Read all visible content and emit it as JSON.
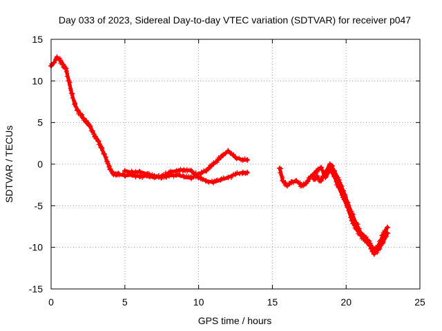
{
  "chart_data": {
    "type": "scatter",
    "title": "Day 033 of 2023, Sidereal Day-to-day VTEC variation (SDTVAR) for receiver p047",
    "xlabel": "GPS time / hours",
    "ylabel": "SDTVAR / TECUs",
    "xlim": [
      0,
      25
    ],
    "ylim": [
      -15,
      15
    ],
    "xticks": [
      "0",
      "5",
      "10",
      "15",
      "20",
      "25"
    ],
    "yticks": [
      "15",
      "10",
      "5",
      "0",
      "-5",
      "-10",
      "-15"
    ],
    "grid": true,
    "marker": "plus",
    "color": "#ff0000",
    "series": [
      {
        "x": [
          0.0,
          0.2,
          0.4,
          0.6,
          0.8,
          1.0,
          1.2,
          1.4,
          1.6,
          1.8,
          2.0,
          2.2,
          2.4,
          2.6,
          2.8,
          3.0,
          3.2,
          3.4,
          3.6,
          3.8,
          4.0,
          4.2,
          4.4,
          4.6,
          5.0,
          5.5,
          6.0,
          6.5,
          7.0,
          7.5,
          8.0,
          8.5,
          9.0,
          9.5,
          10.0,
          10.5,
          11.0,
          11.5,
          12.0,
          12.5,
          13.0,
          13.3
        ],
        "y": [
          11.8,
          12.2,
          12.8,
          12.5,
          12.0,
          11.5,
          10.0,
          8.5,
          7.2,
          6.5,
          6.0,
          5.5,
          5.0,
          4.6,
          4.0,
          3.3,
          2.8,
          2.0,
          1.2,
          0.3,
          -0.6,
          -1.1,
          -1.3,
          -1.2,
          -1.4,
          -1.3,
          -1.5,
          -1.4,
          -1.6,
          -1.5,
          -1.4,
          -1.3,
          -1.5,
          -1.7,
          -1.2,
          -0.8,
          0.0,
          0.8,
          1.6,
          0.8,
          0.5,
          0.5
        ]
      },
      {
        "x": [
          5.0,
          5.5,
          6.0,
          6.5,
          7.0,
          7.5,
          8.0,
          8.5,
          9.0,
          9.5,
          10.0,
          10.5,
          11.0,
          11.5,
          12.0,
          12.5,
          13.0,
          13.3
        ],
        "y": [
          -0.8,
          -1.0,
          -0.9,
          -1.2,
          -1.4,
          -1.6,
          -1.0,
          -0.8,
          -0.7,
          -0.8,
          -1.6,
          -2.0,
          -2.2,
          -1.9,
          -1.6,
          -1.2,
          -1.0,
          -1.0
        ]
      },
      {
        "x": [
          15.5,
          15.7,
          16.0,
          16.3,
          16.6,
          17.0,
          17.3,
          17.6,
          18.0,
          18.3,
          18.6,
          18.9,
          19.2,
          19.5,
          19.8,
          20.1,
          20.4,
          20.7,
          21.0,
          21.3,
          21.6,
          21.9,
          22.2,
          22.5,
          22.8
        ],
        "y": [
          -0.5,
          -2.0,
          -2.6,
          -2.2,
          -2.0,
          -2.6,
          -2.3,
          -1.5,
          -0.8,
          -0.4,
          -1.6,
          -0.6,
          -1.5,
          -2.8,
          -4.0,
          -5.2,
          -6.8,
          -7.8,
          -8.6,
          -9.2,
          -9.8,
          -10.8,
          -10.2,
          -9.4,
          -8.3
        ]
      },
      {
        "x": [
          17.8,
          18.0,
          18.3,
          18.6,
          18.9,
          19.2,
          19.5,
          19.8,
          20.1,
          20.4,
          20.7,
          21.0,
          21.3,
          21.6,
          21.9,
          22.2,
          22.5,
          22.8
        ],
        "y": [
          -1.8,
          -1.5,
          -2.0,
          -1.0,
          0.0,
          -0.8,
          -1.9,
          -3.2,
          -4.6,
          -6.0,
          -7.2,
          -8.3,
          -8.8,
          -9.5,
          -10.4,
          -9.8,
          -8.5,
          -7.6
        ]
      }
    ]
  }
}
